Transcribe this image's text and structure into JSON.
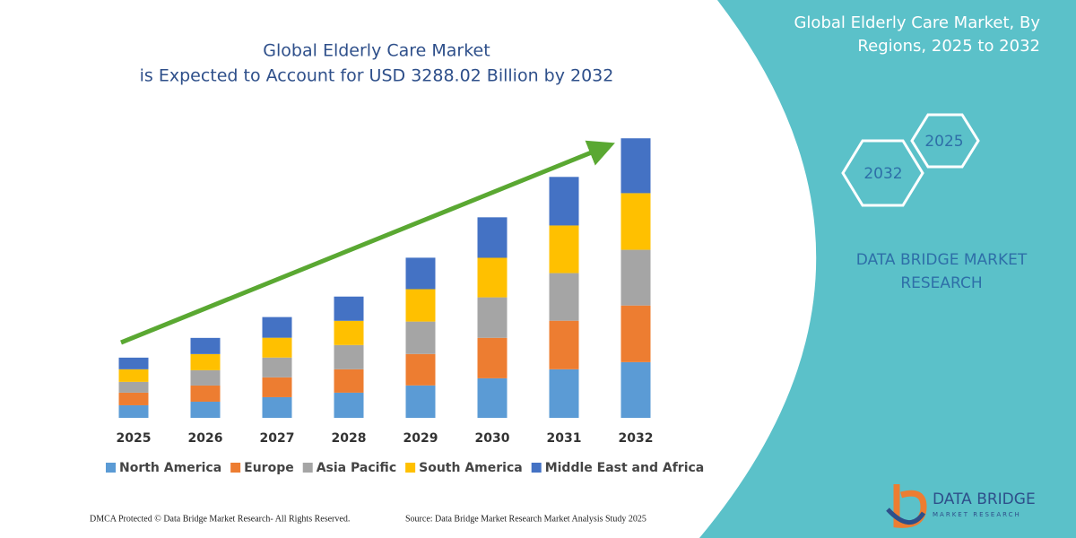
{
  "chart_data": {
    "type": "stacked_bar",
    "title": "Global Elderly Care Market",
    "subtitle": "is Expected to Account for USD 3288.02 Billion by 2032",
    "categories": [
      "2025",
      "2026",
      "2027",
      "2028",
      "2029",
      "2030",
      "2031",
      "2032"
    ],
    "series": [
      {
        "name": "North America",
        "color": "#5b9bd5",
        "values": [
          148,
          190,
          243,
          296,
          381,
          465,
          571,
          655
        ]
      },
      {
        "name": "Europe",
        "color": "#ed7d31",
        "values": [
          148,
          190,
          233,
          275,
          370,
          476,
          571,
          666
        ]
      },
      {
        "name": "Asia Pacific",
        "color": "#a5a5a5",
        "values": [
          127,
          180,
          233,
          285,
          381,
          476,
          560,
          655
        ]
      },
      {
        "name": "South America",
        "color": "#ffc000",
        "values": [
          148,
          190,
          233,
          285,
          381,
          465,
          560,
          666
        ]
      },
      {
        "name": "Middle East and Africa",
        "color": "#4472c4",
        "values": [
          137,
          190,
          243,
          285,
          370,
          476,
          571,
          645
        ]
      }
    ],
    "ylim": [
      0,
      3300
    ],
    "trend_color": "#5aa832"
  },
  "panel": {
    "title": [
      "Global Elderly Care Market, By",
      "Regions, 2025 to 2032"
    ],
    "hexagons": [
      "2032",
      "2025"
    ],
    "brand": [
      "DATA BRIDGE MARKET",
      "RESEARCH"
    ]
  },
  "footer": {
    "left": "DMCA Protected © Data Bridge Market Research-  All Rights Reserved.",
    "right": "Source: Data Bridge Market Research  Market Analysis Study 2025"
  },
  "logo": {
    "name": "DATA BRIDGE",
    "tagline": "MARKET RESEARCH"
  }
}
